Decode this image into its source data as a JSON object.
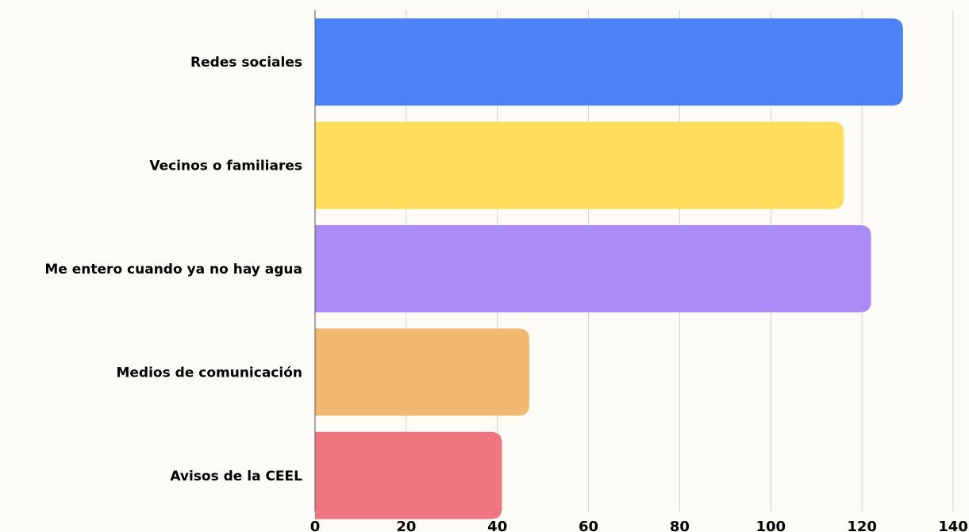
{
  "chart_data": {
    "type": "bar",
    "orientation": "horizontal",
    "categories": [
      "Redes sociales",
      "Vecinos o familiares",
      "Me entero cuando ya no hay agua",
      "Medios de comunicación",
      "Avisos de la CEEL"
    ],
    "values": [
      129,
      116,
      122,
      47,
      41
    ],
    "colors": [
      "#4d82f7",
      "#fede5c",
      "#ab8cf4",
      "#f3b870",
      "#ef7680"
    ],
    "xlim": [
      0,
      140
    ],
    "xticks": [
      "0",
      "20",
      "40",
      "60",
      "80",
      "100",
      "120",
      "140"
    ],
    "grid": true,
    "title": "",
    "xlabel": "",
    "ylabel": ""
  }
}
